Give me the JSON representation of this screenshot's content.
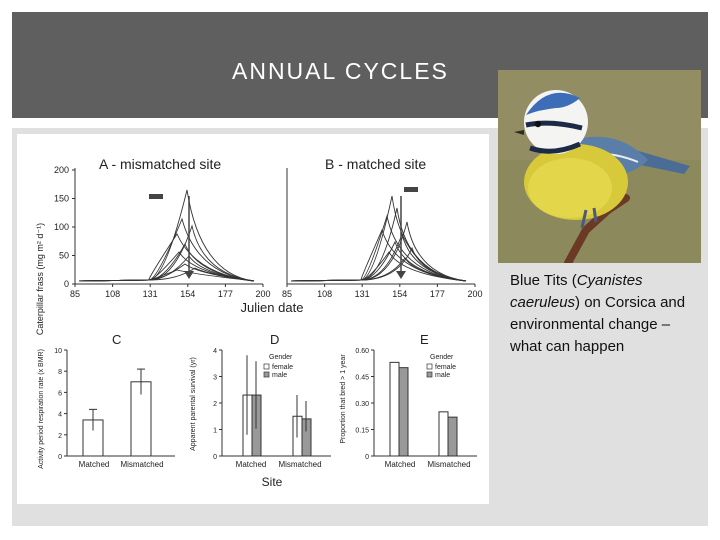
{
  "slide": {
    "title": "ANNUAL CYCLES",
    "caption": {
      "part1": "Blue Tits (",
      "species": "Cyanistes caeruleus",
      "part2": ") on Corsica and environmental change – what can happen"
    }
  },
  "photo": {
    "subject": "blue-tit-bird"
  },
  "figure": {
    "panel_a_title": "A - mismatched site",
    "panel_b_title": "B - matched site",
    "top_ylabel": "Caterpillar frass (mg m² d⁻¹)",
    "top_xlabel": "Julien date",
    "top_yticks": [
      "200",
      "150",
      "100",
      "50",
      "0"
    ],
    "top_xticks": [
      "85",
      "108",
      "131",
      "154",
      "177",
      "200"
    ],
    "arrow_date": 154,
    "panel_c_label": "C",
    "panel_d_label": "D",
    "panel_e_label": "E",
    "c_ylabel": "Activity period respiration rate (x BMR)",
    "d_ylabel": "Apparent parental survival (yr)",
    "e_ylabel": "Proportion that bred > 1 year",
    "c_yticks": [
      "10",
      "8",
      "6",
      "4",
      "2",
      "0"
    ],
    "d_yticks": [
      "4",
      "3",
      "2",
      "1",
      "0"
    ],
    "e_yticks": [
      "0.60",
      "0.45",
      "0.30",
      "0.15",
      "0"
    ],
    "categories": [
      "Matched",
      "Mismatched"
    ],
    "gender_title": "Gender",
    "gender_female": "female",
    "gender_male": "male",
    "site_label": "Site",
    "c_values": [
      3.4,
      7.0
    ],
    "c_errors": [
      1.0,
      1.2
    ],
    "d_female": [
      2.3,
      1.5
    ],
    "d_male": [
      2.3,
      1.4
    ],
    "d_errors": [
      1.5,
      0.8
    ],
    "e_female": [
      0.53,
      0.25
    ],
    "e_male": [
      0.5,
      0.22
    ]
  }
}
